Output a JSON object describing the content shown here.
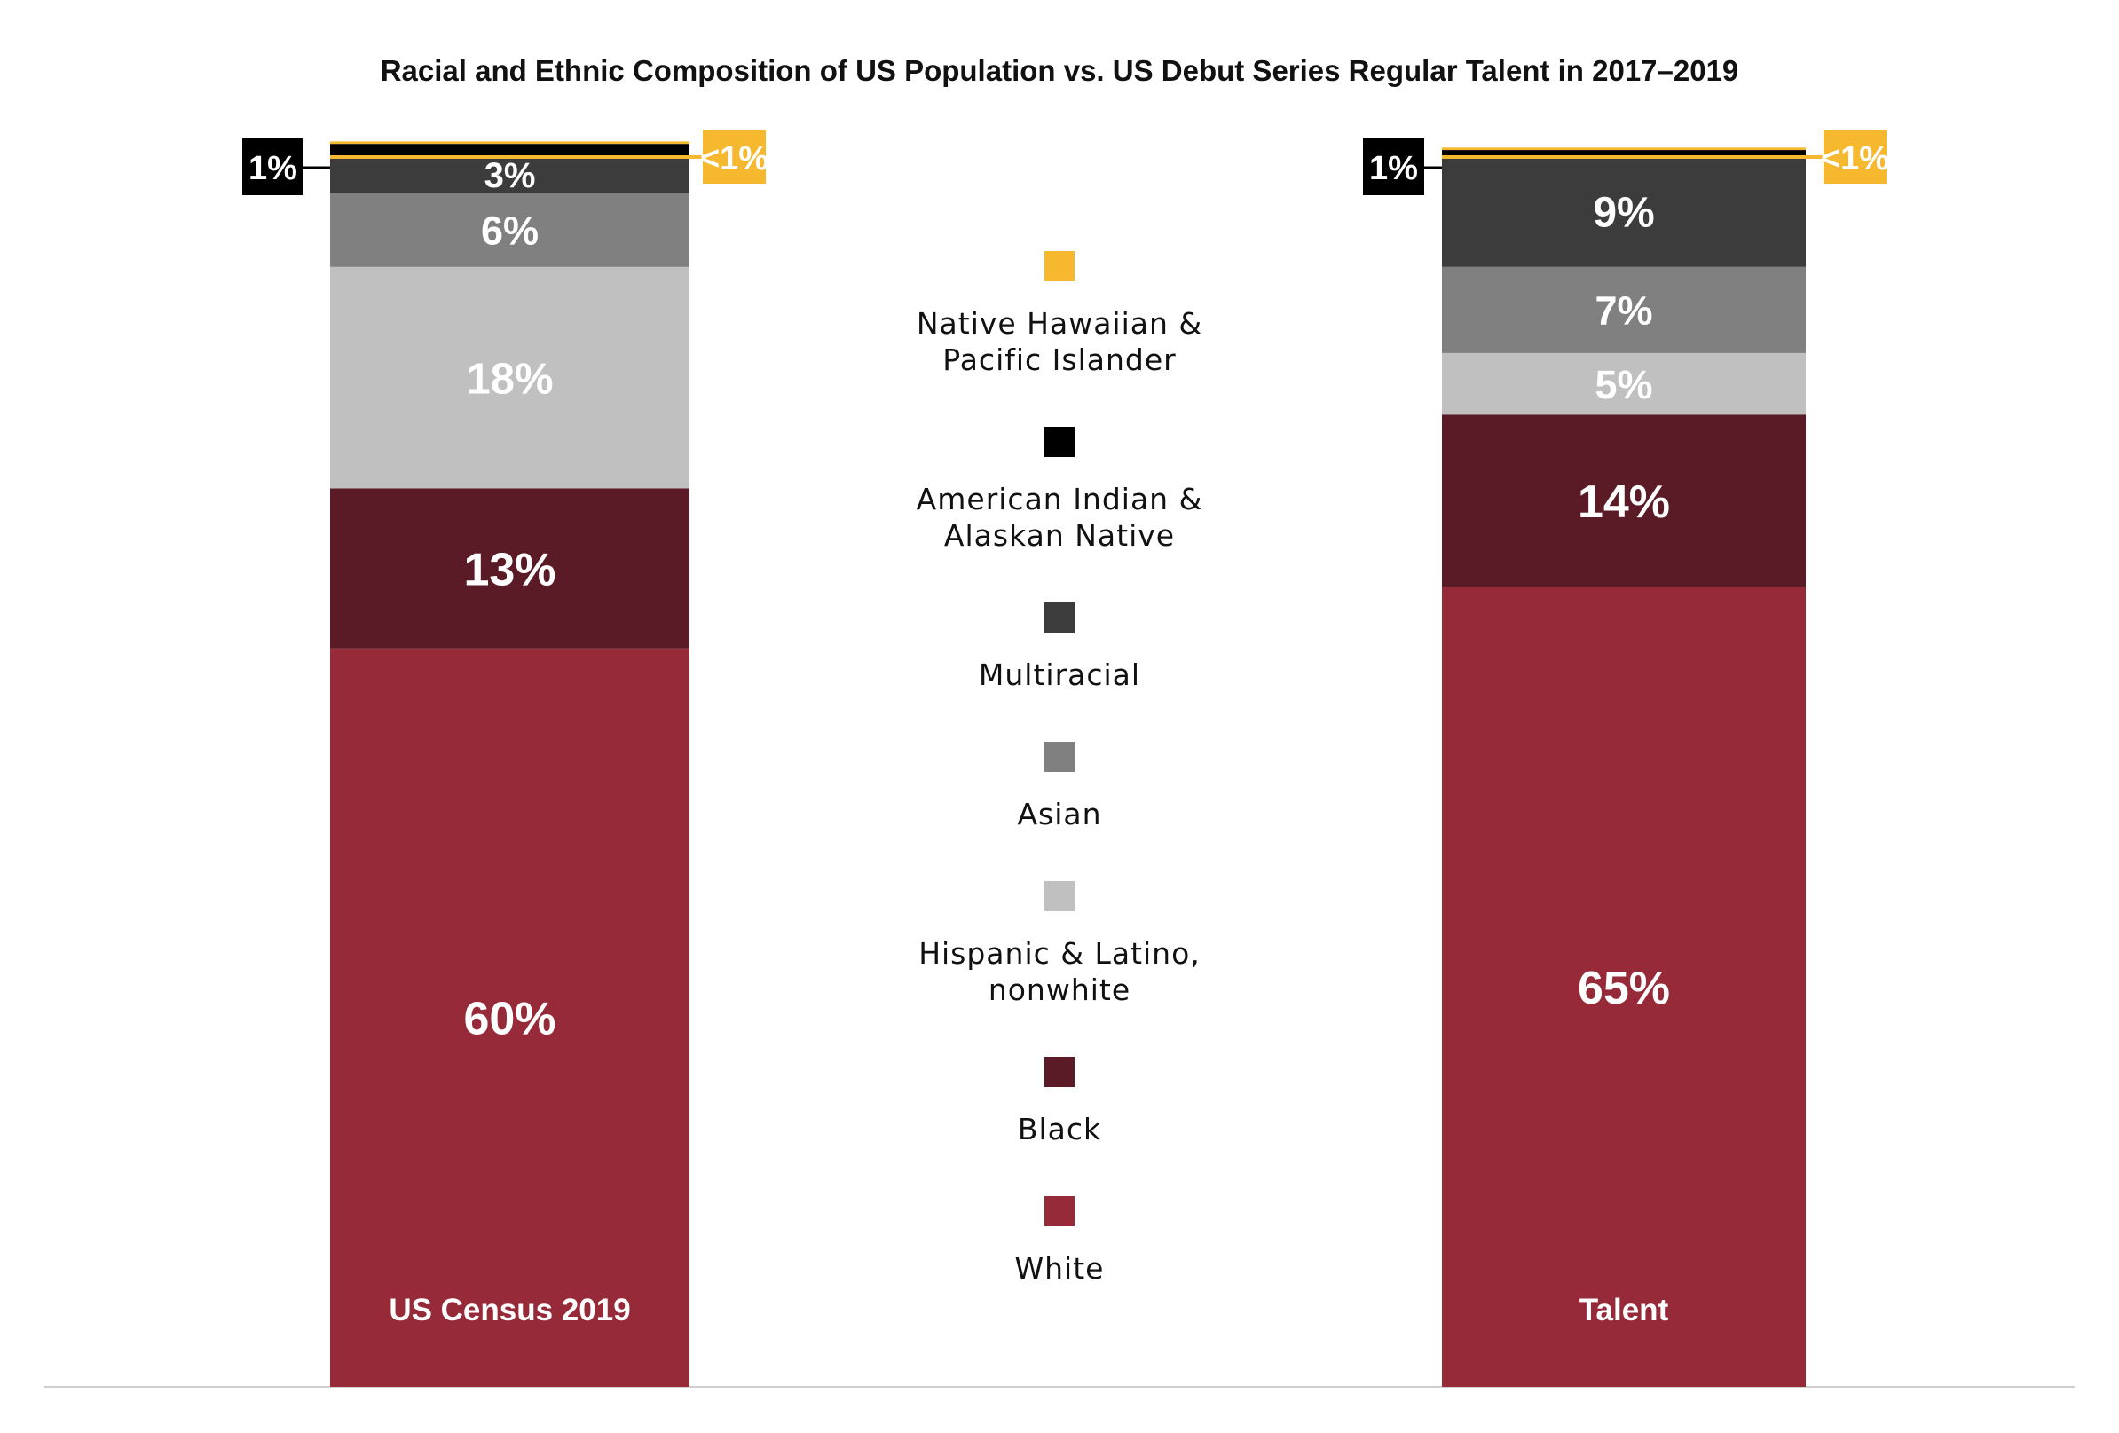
{
  "chart_data": {
    "type": "stacked-bar",
    "title": "Racial and Ethnic Composition of US Population vs. US Debut Series Regular Talent in 2017–2019",
    "categories": [
      "US Census 2019",
      "Talent"
    ],
    "series": [
      {
        "name": "White",
        "color": "#962a38",
        "values": [
          60,
          65
        ],
        "labels": [
          "60%",
          "65%"
        ]
      },
      {
        "name": "Black",
        "color": "#5a1a26",
        "values": [
          13,
          14
        ],
        "labels": [
          "13%",
          "14%"
        ]
      },
      {
        "name": "Hispanic & Latino, nonwhite",
        "color": "#c0c0c0",
        "values": [
          18,
          5
        ],
        "labels": [
          "18%",
          "5%"
        ]
      },
      {
        "name": "Asian",
        "color": "#808080",
        "values": [
          6,
          7
        ],
        "labels": [
          "6%",
          "7%"
        ]
      },
      {
        "name": "Multiracial",
        "color": "#3c3c3c",
        "values": [
          3,
          9
        ],
        "labels": [
          "3%",
          "9%"
        ]
      },
      {
        "name": "American Indian & Alaskan Native",
        "color": "#000000",
        "values": [
          1,
          0.5
        ],
        "labels": [
          "1%",
          "1%"
        ]
      },
      {
        "name": "Native Hawaiian & Pacific Islander",
        "color": "#f5b82e",
        "values": [
          0.2,
          0.2
        ],
        "labels": [
          "<1%",
          "<1%"
        ]
      }
    ],
    "legend": {
      "order": [
        "Native Hawaiian & Pacific Islander",
        "American Indian & Alaskan Native",
        "Multiracial",
        "Asian",
        "Hispanic & Latino, nonwhite",
        "Black",
        "White"
      ],
      "lines": [
        [
          "Native Hawaiian &",
          "Pacific Islander"
        ],
        [
          "American Indian &",
          "Alaskan Native"
        ],
        [
          "Multiracial"
        ],
        [
          "Asian"
        ],
        [
          "Hispanic & Latino,",
          "nonwhite"
        ],
        [
          "Black"
        ],
        [
          "White"
        ]
      ]
    },
    "ylim": [
      0,
      100
    ],
    "legend_position": "center"
  }
}
